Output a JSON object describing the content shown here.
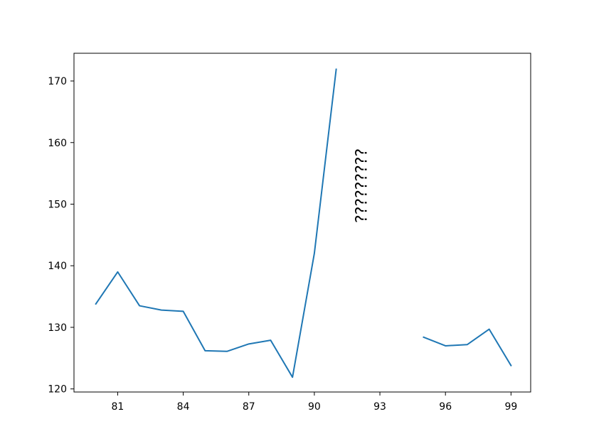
{
  "chart_data": {
    "type": "line",
    "title": "",
    "xlabel": "",
    "ylabel": "",
    "xlim": [
      79.0,
      99.9
    ],
    "ylim": [
      119.5,
      174.5
    ],
    "xticks": [
      81,
      84,
      87,
      90,
      93,
      96,
      99
    ],
    "yticks": [
      120,
      130,
      140,
      150,
      160,
      170
    ],
    "grid": false,
    "legend": "none",
    "series": [
      {
        "color": "#1f77b4",
        "segments": [
          {
            "x": [
              80,
              81,
              82,
              83,
              84,
              85,
              86,
              87,
              88,
              89,
              90,
              91
            ],
            "y": [
              133.8,
              139.0,
              133.5,
              132.8,
              132.6,
              126.2,
              126.1,
              127.3,
              127.9,
              121.9,
              142.0,
              171.9
            ]
          },
          {
            "x": [
              95,
              96,
              97,
              98,
              99
            ],
            "y": [
              128.4,
              127.0,
              127.2,
              129.7,
              123.8
            ]
          }
        ]
      }
    ],
    "annotations": [
      {
        "text": "¿¿¿¿¿¿¿¿¿",
        "x": 92.2,
        "y": 153,
        "rotation": 90
      }
    ]
  }
}
